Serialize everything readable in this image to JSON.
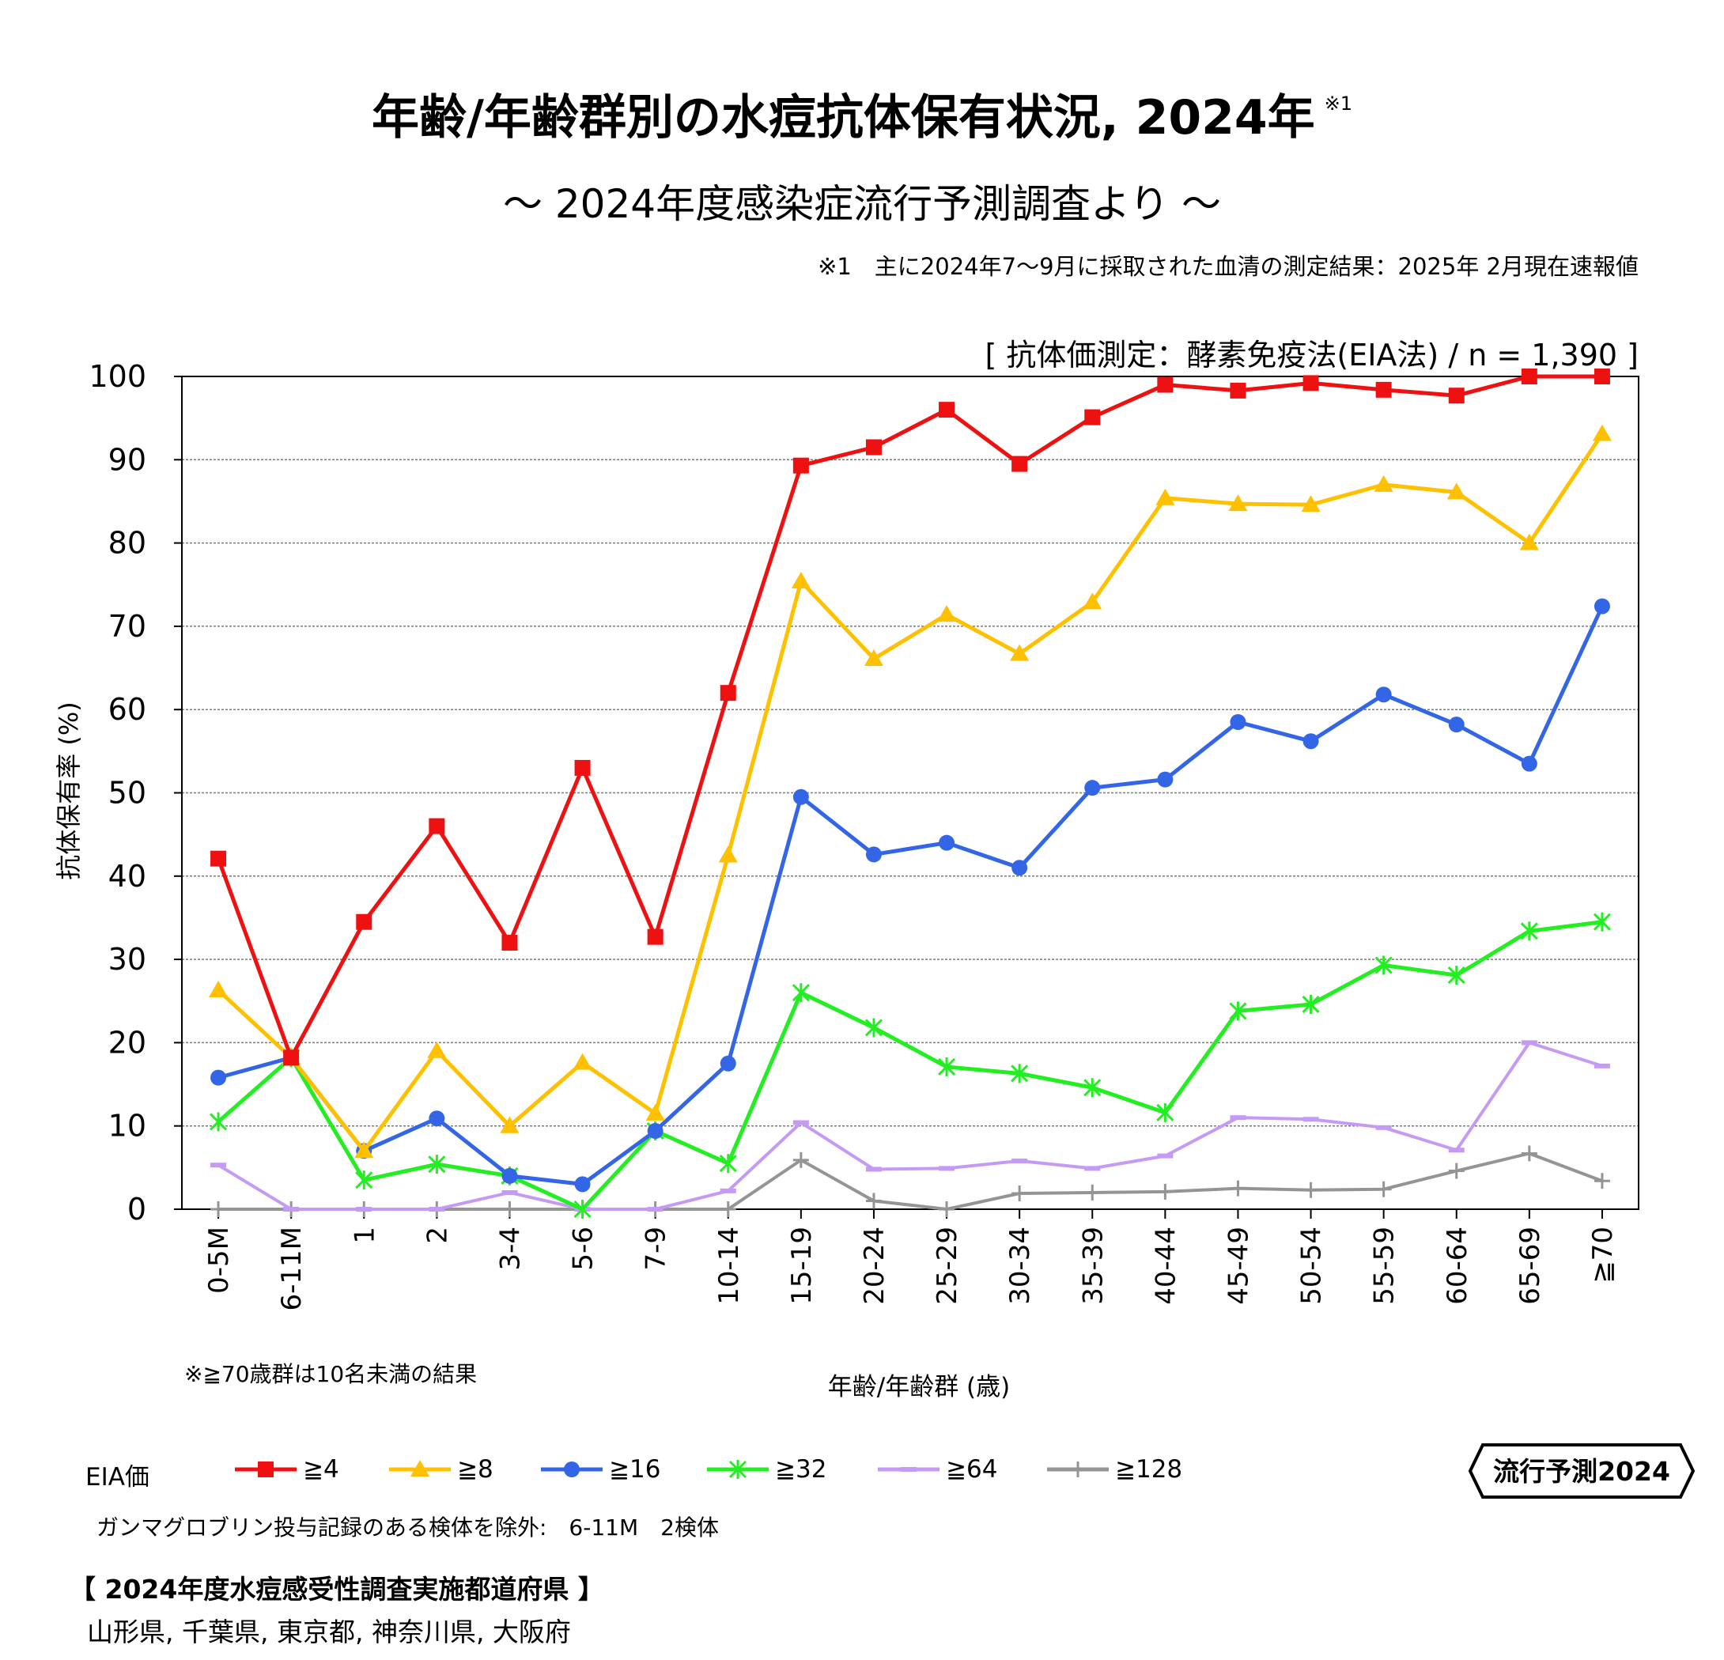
{
  "header": {
    "title": "年齢/年齢群別の水痘抗体保有状況, 2024年",
    "title_note_mark": "※1",
    "subtitle": "～ 2024年度感染症流行予測調査より ～",
    "footnote1": "※1　主に2024年7～9月に採取された血清の測定結果：2025年 2月現在速報値",
    "method": "[ 抗体価測定：酵素免疫法(EIA法) / n = 1,390 ]"
  },
  "chart_data": {
    "type": "line",
    "xlabel": "年齢/年齢群 (歳)",
    "ylabel": "抗体保有率 (%)",
    "ylim": [
      0,
      100
    ],
    "yticks": [
      "0",
      "10",
      "20",
      "30",
      "40",
      "50",
      "60",
      "70",
      "80",
      "90",
      "100"
    ],
    "categories": [
      "0-5M",
      "6-11M",
      "1",
      "2",
      "3-4",
      "5-6",
      "7-9",
      "10-14",
      "15-19",
      "20-24",
      "25-29",
      "30-34",
      "35-39",
      "40-44",
      "45-49",
      "50-54",
      "55-59",
      "60-64",
      "65-69",
      "≧70"
    ],
    "grid": true,
    "series": [
      {
        "name": "≧4",
        "color": "#ee1111",
        "marker": "square",
        "values": [
          42.1,
          18.2,
          34.5,
          46.0,
          32.0,
          53.0,
          32.7,
          62.0,
          89.3,
          91.5,
          96.0,
          89.5,
          95.1,
          99.0,
          98.3,
          99.2,
          98.4,
          97.7,
          100,
          100
        ]
      },
      {
        "name": "≧8",
        "color": "#ffc000",
        "marker": "triangle",
        "values": [
          26.3,
          18.2,
          7.0,
          19.0,
          10.0,
          17.6,
          11.5,
          42.5,
          75.4,
          66.1,
          71.4,
          66.7,
          72.9,
          85.4,
          84.7,
          84.6,
          87.0,
          86.1,
          80.0,
          93.1
        ]
      },
      {
        "name": "≧16",
        "color": "#3366e6",
        "marker": "circle",
        "values": [
          15.8,
          18.2,
          7.0,
          10.9,
          4.0,
          3.0,
          9.4,
          17.5,
          49.5,
          42.6,
          44.0,
          41.0,
          50.6,
          51.6,
          58.5,
          56.2,
          61.8,
          58.2,
          53.5,
          72.4
        ]
      },
      {
        "name": "≧32",
        "color": "#22ee22",
        "marker": "star",
        "values": [
          10.5,
          18.2,
          3.5,
          5.4,
          4.0,
          0,
          9.4,
          5.5,
          26.0,
          21.8,
          17.1,
          16.3,
          14.6,
          11.6,
          23.8,
          24.6,
          29.3,
          28.1,
          33.4,
          34.5
        ]
      },
      {
        "name": "≧64",
        "color": "#c49af4",
        "marker": "dash",
        "values": [
          5.3,
          0,
          0,
          0,
          2.0,
          0,
          0,
          2.2,
          10.4,
          4.8,
          4.9,
          5.8,
          4.9,
          6.4,
          11.0,
          10.8,
          9.8,
          7.1,
          20.0,
          17.2
        ]
      },
      {
        "name": "≧128",
        "color": "#949494",
        "marker": "plus",
        "values": [
          0,
          0,
          0,
          0,
          0,
          0,
          0,
          0,
          5.9,
          1.0,
          0,
          1.9,
          2.0,
          2.1,
          2.5,
          2.3,
          2.4,
          4.6,
          6.7,
          3.4
        ]
      }
    ],
    "annotations": [
      "※≧70歳群は10名未満の結果"
    ]
  },
  "legend": {
    "title": "EIA価",
    "items": [
      "≧4",
      "≧8",
      "≧16",
      "≧32",
      "≧64",
      "≧128"
    ]
  },
  "brand": "流行予測2024",
  "notes": {
    "gamma": "ガンマグロブリン投与記録のある検体を除外:　6-11M　2検体",
    "note70": "※≧70歳群は10名未満の結果"
  },
  "prefectures": {
    "heading": "【 2024年度水痘感受性調査実施都道府県 】",
    "list": "山形県,  千葉県,  東京都,  神奈川県,  大阪府"
  }
}
